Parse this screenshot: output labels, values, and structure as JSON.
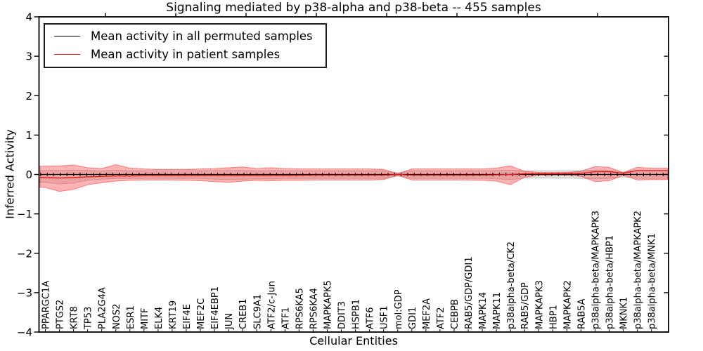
{
  "chart_data": {
    "type": "line",
    "title": "Signaling mediated by p38-alpha and p38-beta -- 455 samples",
    "xlabel": "Cellular Entities",
    "ylabel": "Inferred Activity",
    "ylim": [
      -4,
      4
    ],
    "yticks": [
      4,
      3,
      2,
      1,
      0,
      -1,
      -2,
      -3,
      -4
    ],
    "ytick_labels": [
      "4",
      "3",
      "2",
      "1",
      "0",
      "−1",
      "−2",
      "−3",
      "−4"
    ],
    "grid": false,
    "legend_position": "upper left",
    "legend": [
      {
        "label": "Mean activity in all permuted samples",
        "color": "#000000"
      },
      {
        "label": "Mean activity in patient samples",
        "color": "#e02020"
      }
    ],
    "categories": [
      "PPARGC1A",
      "PTGS2",
      "KRT8",
      "TP53",
      "PLA2G4A",
      "NOS2",
      "ESR1",
      "MITF",
      "ELK4",
      "KRT19",
      "EIF4E",
      "MEF2C",
      "EIF4EBP1",
      "JUN",
      "CREB1",
      "SLC9A1",
      "ATF2/c-Jun",
      "ATF1",
      "RPS6KA5",
      "RPS6KA4",
      "MAPKAPK5",
      "DDIT3",
      "HSPB1",
      "ATF6",
      "USF1",
      "mol:GDP",
      "GDI1",
      "MEF2A",
      "ATF2",
      "CEBPB",
      "RAB5/GDP/GDI1",
      "MAPK14",
      "MAPK11",
      "p38alpha-beta/CK2",
      "RAB5/GDP",
      "MAPKAPK3",
      "HBP1",
      "MAPKAPK2",
      "RAB5A",
      "p38alpha-beta/MAPKAPK3",
      "p38alpha-beta/HBP1",
      "MKNK1",
      "p38alpha-beta/MAPKAPK2",
      "p38alpha-beta/MNK1"
    ],
    "series": [
      {
        "name": "Mean activity in all permuted samples",
        "color": "#000000",
        "values": [
          0,
          0,
          0,
          0,
          0,
          0,
          0,
          0,
          0,
          0,
          0,
          0,
          0,
          0,
          0,
          0,
          0,
          0,
          0,
          0,
          0,
          0,
          0,
          0,
          0,
          0,
          0,
          0,
          0,
          0,
          0,
          0,
          0,
          0,
          0,
          0,
          0,
          0,
          0,
          0,
          0,
          0,
          0,
          0
        ]
      },
      {
        "name": "Mean activity in patient samples",
        "color": "#e02020",
        "values": [
          -0.08,
          -0.09,
          -0.08,
          -0.06,
          -0.05,
          -0.04,
          -0.04,
          -0.03,
          -0.03,
          -0.03,
          -0.03,
          -0.03,
          -0.03,
          -0.03,
          -0.03,
          -0.03,
          -0.03,
          -0.03,
          -0.03,
          -0.02,
          -0.02,
          -0.02,
          -0.02,
          -0.02,
          -0.02,
          0.0,
          -0.02,
          -0.02,
          -0.02,
          -0.02,
          -0.02,
          -0.02,
          -0.01,
          0.0,
          0.02,
          0.02,
          0.02,
          0.03,
          0.03,
          0.07,
          0.07,
          0.03,
          0.1,
          0.1
        ]
      }
    ],
    "bands": [
      {
        "name": "permuted-std-band",
        "color": "#8a8a8a",
        "opacity": 0.25,
        "upper": [
          0.1,
          0.1,
          0.11,
          0.1,
          0.09,
          0.11,
          0.09,
          0.09,
          0.09,
          0.09,
          0.09,
          0.09,
          0.1,
          0.1,
          0.1,
          0.09,
          0.1,
          0.09,
          0.09,
          0.09,
          0.09,
          0.09,
          0.09,
          0.09,
          0.09,
          0.04,
          0.09,
          0.09,
          0.09,
          0.09,
          0.09,
          0.09,
          0.1,
          0.11,
          0.09,
          0.09,
          0.09,
          0.09,
          0.1,
          0.11,
          0.1,
          0.06,
          0.1,
          0.1
        ],
        "lower": [
          -0.2,
          -0.24,
          -0.22,
          -0.15,
          -0.12,
          -0.1,
          -0.1,
          -0.1,
          -0.1,
          -0.1,
          -0.1,
          -0.1,
          -0.12,
          -0.13,
          -0.12,
          -0.11,
          -0.11,
          -0.1,
          -0.1,
          -0.1,
          -0.1,
          -0.1,
          -0.1,
          -0.1,
          -0.1,
          -0.04,
          -0.1,
          -0.1,
          -0.1,
          -0.1,
          -0.1,
          -0.1,
          -0.11,
          -0.13,
          -0.09,
          -0.09,
          -0.09,
          -0.09,
          -0.1,
          -0.11,
          -0.1,
          -0.06,
          -0.1,
          -0.1
        ]
      },
      {
        "name": "patient-std-band",
        "color": "#ff3b3b",
        "opacity": 0.38,
        "upper": [
          0.21,
          0.22,
          0.24,
          0.17,
          0.15,
          0.25,
          0.16,
          0.14,
          0.13,
          0.13,
          0.13,
          0.14,
          0.15,
          0.17,
          0.19,
          0.15,
          0.17,
          0.15,
          0.14,
          0.14,
          0.14,
          0.14,
          0.14,
          0.14,
          0.13,
          0.02,
          0.14,
          0.14,
          0.14,
          0.14,
          0.14,
          0.14,
          0.16,
          0.22,
          0.08,
          0.05,
          0.05,
          0.05,
          0.08,
          0.2,
          0.18,
          0.05,
          0.18,
          0.16
        ],
        "lower": [
          -0.33,
          -0.43,
          -0.38,
          -0.26,
          -0.21,
          -0.17,
          -0.15,
          -0.14,
          -0.14,
          -0.14,
          -0.15,
          -0.16,
          -0.18,
          -0.2,
          -0.17,
          -0.15,
          -0.16,
          -0.15,
          -0.15,
          -0.14,
          -0.14,
          -0.14,
          -0.14,
          -0.14,
          -0.13,
          -0.02,
          -0.14,
          -0.14,
          -0.14,
          -0.14,
          -0.14,
          -0.15,
          -0.17,
          -0.26,
          -0.07,
          -0.02,
          -0.02,
          -0.02,
          -0.05,
          -0.18,
          -0.16,
          -0.02,
          -0.14,
          -0.13
        ]
      }
    ]
  }
}
